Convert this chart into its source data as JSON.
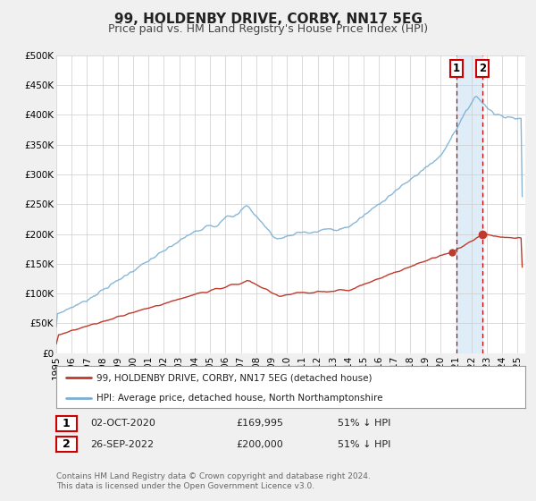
{
  "title": "99, HOLDENBY DRIVE, CORBY, NN17 5EG",
  "subtitle": "Price paid vs. HM Land Registry's House Price Index (HPI)",
  "ylim": [
    0,
    500000
  ],
  "yticks": [
    0,
    50000,
    100000,
    150000,
    200000,
    250000,
    300000,
    350000,
    400000,
    450000,
    500000
  ],
  "ytick_labels": [
    "£0",
    "£50K",
    "£100K",
    "£150K",
    "£200K",
    "£250K",
    "£300K",
    "£350K",
    "£400K",
    "£450K",
    "£500K"
  ],
  "xlim_start": 1995.0,
  "xlim_end": 2025.5,
  "hpi_color": "#7bafd4",
  "price_color": "#c0392b",
  "bg_color": "#f0f0f0",
  "plot_bg_color": "#ffffff",
  "shade_color": "#daeaf7",
  "vline_color": "#cc0000",
  "marker1_x": 2020.75,
  "marker1_y": 169995,
  "marker2_x": 2022.73,
  "marker2_y": 200000,
  "vline_x": 2021.0,
  "vline2_x": 2022.73,
  "legend_label_price": "99, HOLDENBY DRIVE, CORBY, NN17 5EG (detached house)",
  "legend_label_hpi": "HPI: Average price, detached house, North Northamptonshire",
  "annotation1_label": "1",
  "annotation2_label": "2",
  "table_row1": [
    "1",
    "02-OCT-2020",
    "£169,995",
    "51% ↓ HPI"
  ],
  "table_row2": [
    "2",
    "26-SEP-2022",
    "£200,000",
    "51% ↓ HPI"
  ],
  "footer": "Contains HM Land Registry data © Crown copyright and database right 2024.\nThis data is licensed under the Open Government Licence v3.0.",
  "title_fontsize": 11,
  "subtitle_fontsize": 9,
  "tick_fontsize": 7.5
}
